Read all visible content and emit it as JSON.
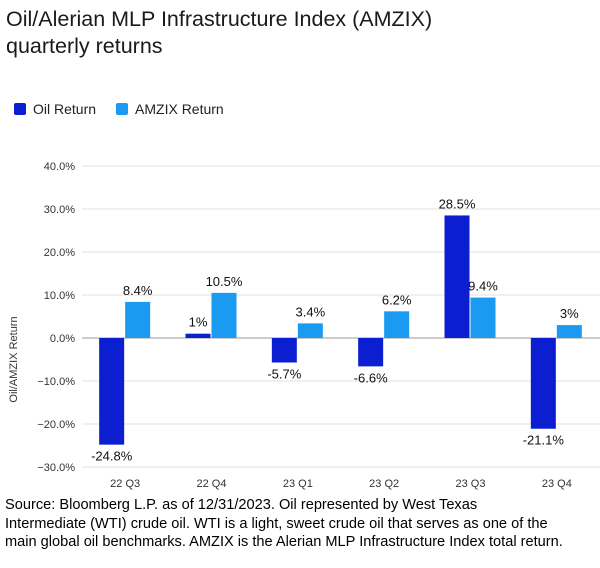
{
  "title": {
    "line1": "Oil/Alerian MLP Infrastructure Index (AMZIX)",
    "line2": "quarterly returns"
  },
  "legend": [
    {
      "label": "Oil Return",
      "color": "#0b1ed0"
    },
    {
      "label": "AMZIX Return",
      "color": "#1a9af0"
    }
  ],
  "chart_data": {
    "type": "bar",
    "categories": [
      "22 Q3",
      "22 Q4",
      "23 Q1",
      "23 Q2",
      "23 Q3",
      "23 Q4"
    ],
    "series": [
      {
        "name": "Oil Return",
        "color": "#0b1ed0",
        "values": [
          -24.8,
          1,
          -5.7,
          -6.6,
          28.5,
          -21.1
        ],
        "labels": [
          "-24.8%",
          "1%",
          "-5.7%",
          "-6.6%",
          "28.5%",
          "-21.1%"
        ]
      },
      {
        "name": "AMZIX Return",
        "color": "#1a9af0",
        "values": [
          8.4,
          10.5,
          3.4,
          6.2,
          9.4,
          3
        ],
        "labels": [
          "8.4%",
          "10.5%",
          "3.4%",
          "6.2%",
          "9.4%",
          "3%"
        ]
      }
    ],
    "ylabel": "Oil/AMZIX Return",
    "ylim": [
      -30,
      40
    ],
    "yticks": [
      -30,
      -20,
      -10,
      0,
      10,
      20,
      30,
      40
    ],
    "ytick_labels": [
      "−30.0%",
      "−20.0%",
      "−10.0%",
      "0.0%",
      "10.0%",
      "20.0%",
      "30.0%",
      "40.0%"
    ],
    "grid": true,
    "legend_position": "top-left"
  },
  "source": {
    "line1": "Source: Bloomberg L.P. as of 12/31/2023. Oil represented by West Texas",
    "line2": "Intermediate (WTI) crude oil. WTI is a light, sweet crude oil that serves as one of the",
    "line3": "main global oil benchmarks. AMZIX is the Alerian MLP Infrastructure Index total return."
  }
}
